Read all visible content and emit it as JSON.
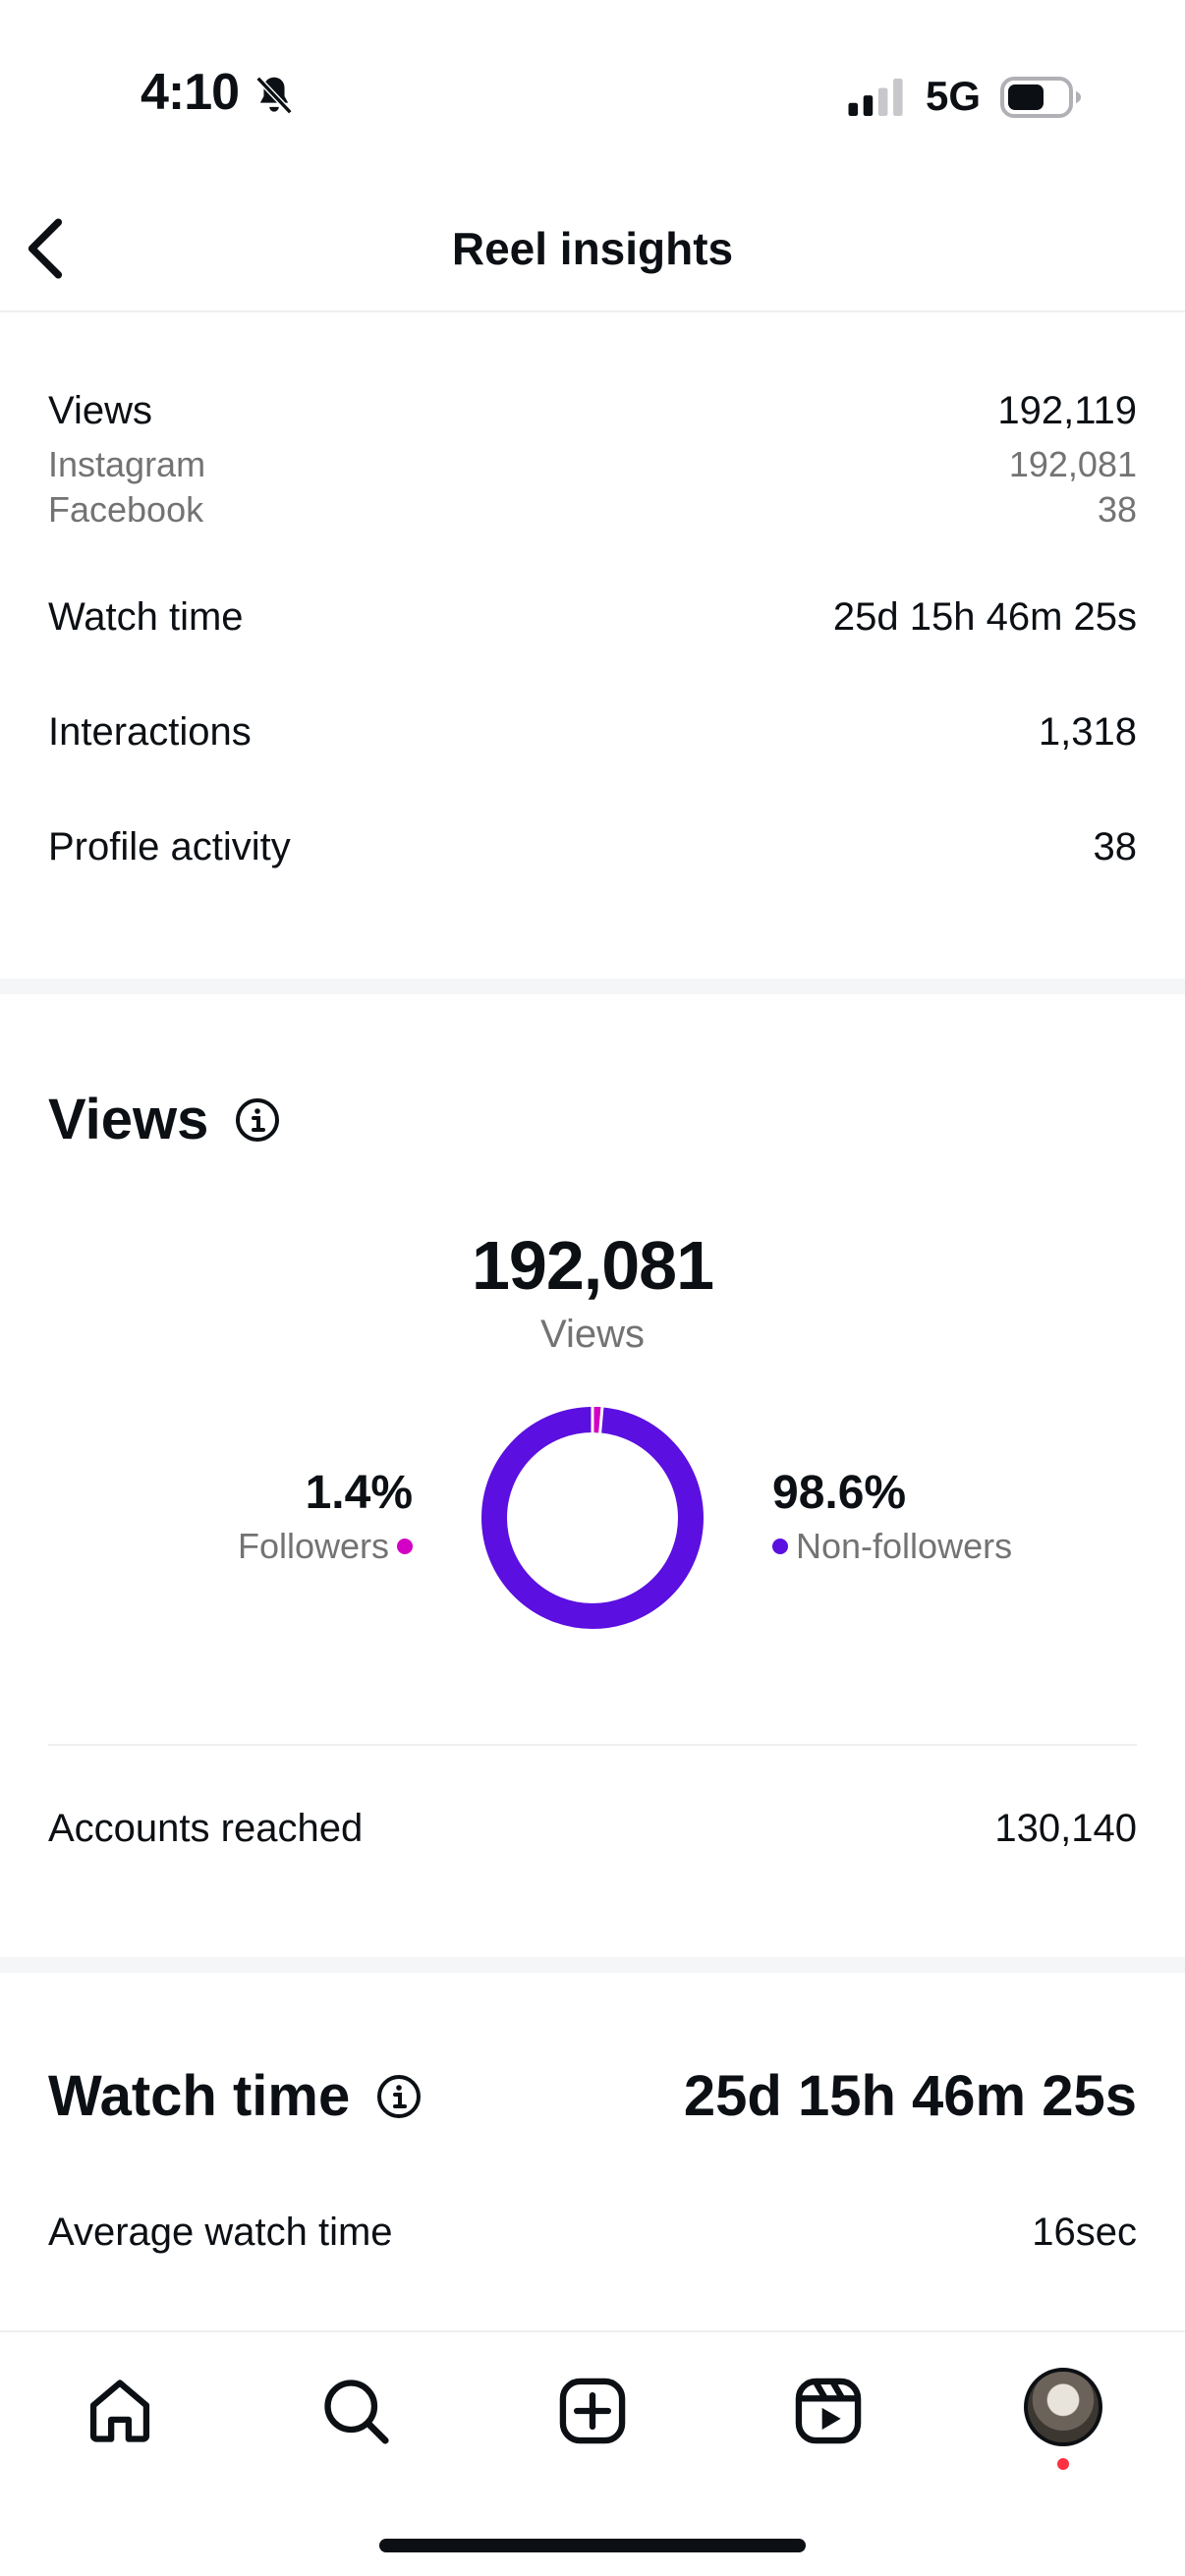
{
  "status_bar": {
    "time": "4:10",
    "network": "5G"
  },
  "header": {
    "title": "Reel insights"
  },
  "summary": {
    "views_label": "Views",
    "views_value": "192,119",
    "instagram_label": "Instagram",
    "instagram_value": "192,081",
    "facebook_label": "Facebook",
    "facebook_value": "38",
    "watch_time_label": "Watch time",
    "watch_time_value": "25d 15h 46m 25s",
    "interactions_label": "Interactions",
    "interactions_value": "1,318",
    "profile_activity_label": "Profile activity",
    "profile_activity_value": "38"
  },
  "views_section": {
    "title": "Views",
    "total": "192,081",
    "total_label": "Views",
    "followers_pct": "1.4%",
    "followers_label": "Followers",
    "non_followers_pct": "98.6%",
    "non_followers_label": "Non-followers",
    "followers_fraction": 0.014,
    "colors": {
      "followers": "#d300c5",
      "non_followers": "#5b0fe0"
    },
    "accounts_reached_label": "Accounts reached",
    "accounts_reached_value": "130,140"
  },
  "watch_section": {
    "title": "Watch time",
    "total": "25d 15h 46m 25s",
    "avg_label": "Average watch time",
    "avg_value": "16sec"
  },
  "tabbar": {
    "icons": [
      "home-icon",
      "search-icon",
      "create-icon",
      "reels-icon",
      "profile-avatar"
    ]
  }
}
